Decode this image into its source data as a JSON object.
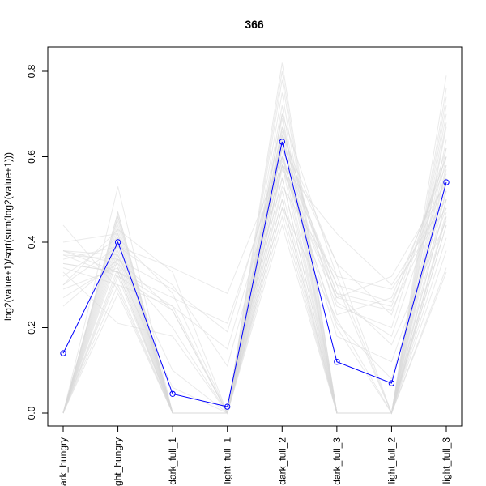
{
  "chart_data": {
    "type": "line",
    "title": "366",
    "xlabel": "",
    "ylabel": "log2(value+1)/sqrt(sum(log2(value+1)))",
    "categories": [
      "dark_hungry",
      "light_hungry",
      "dark_full_1",
      "light_full_1",
      "dark_full_2",
      "dark_full_3",
      "light_full_2",
      "light_full_3"
    ],
    "ylim": [
      0.0,
      0.8
    ],
    "yticks": [
      0.0,
      0.2,
      0.4,
      0.6,
      0.8
    ],
    "ytick_labels": [
      "0.0",
      "0.2",
      "0.4",
      "0.6",
      "0.8"
    ],
    "series": [
      {
        "color": "#0000ff",
        "values": [
          0.14,
          0.4,
          0.045,
          0.015,
          0.635,
          0.12,
          0.07,
          0.54
        ]
      }
    ],
    "background_series": [
      {
        "values": [
          0.0,
          0.47,
          0.0,
          0.0,
          0.82,
          0.0,
          0.0,
          0.79
        ]
      },
      {
        "values": [
          0.0,
          0.46,
          0.0,
          0.0,
          0.8,
          0.0,
          0.0,
          0.76
        ]
      },
      {
        "values": [
          0.0,
          0.47,
          0.0,
          0.0,
          0.78,
          0.0,
          0.0,
          0.74
        ]
      },
      {
        "values": [
          0.0,
          0.46,
          0.0,
          0.0,
          0.75,
          0.0,
          0.0,
          0.72
        ]
      },
      {
        "values": [
          0.0,
          0.45,
          0.0,
          0.0,
          0.72,
          0.0,
          0.0,
          0.7
        ]
      },
      {
        "values": [
          0.0,
          0.44,
          0.0,
          0.0,
          0.7,
          0.0,
          0.0,
          0.67
        ]
      },
      {
        "values": [
          0.0,
          0.43,
          0.0,
          0.0,
          0.67,
          0.0,
          0.0,
          0.64
        ]
      },
      {
        "values": [
          0.0,
          0.42,
          0.0,
          0.0,
          0.65,
          0.0,
          0.0,
          0.62
        ]
      },
      {
        "values": [
          0.0,
          0.41,
          0.0,
          0.0,
          0.62,
          0.0,
          0.0,
          0.6
        ]
      },
      {
        "values": [
          0.0,
          0.4,
          0.0,
          0.0,
          0.6,
          0.0,
          0.0,
          0.57
        ]
      },
      {
        "values": [
          0.0,
          0.39,
          0.0,
          0.0,
          0.58,
          0.0,
          0.0,
          0.55
        ]
      },
      {
        "values": [
          0.0,
          0.38,
          0.0,
          0.0,
          0.55,
          0.0,
          0.0,
          0.52
        ]
      },
      {
        "values": [
          0.0,
          0.37,
          0.0,
          0.0,
          0.52,
          0.0,
          0.0,
          0.5
        ]
      },
      {
        "values": [
          0.0,
          0.36,
          0.0,
          0.0,
          0.5,
          0.0,
          0.0,
          0.47
        ]
      },
      {
        "values": [
          0.0,
          0.34,
          0.0,
          0.0,
          0.48,
          0.0,
          0.0,
          0.44
        ]
      },
      {
        "values": [
          0.0,
          0.33,
          0.0,
          0.0,
          0.46,
          0.0,
          0.0,
          0.41
        ]
      },
      {
        "values": [
          0.0,
          0.32,
          0.0,
          0.0,
          0.44,
          0.0,
          0.0,
          0.38
        ]
      },
      {
        "values": [
          0.0,
          0.3,
          0.0,
          0.0,
          0.5,
          0.0,
          0.0,
          0.34
        ]
      },
      {
        "values": [
          0.0,
          0.28,
          0.0,
          0.0,
          0.55,
          0.0,
          0.0,
          0.33
        ]
      },
      {
        "values": [
          0.0,
          0.53,
          0.0,
          0.0,
          0.69,
          0.0,
          0.0,
          0.68
        ]
      },
      {
        "values": [
          0.44,
          0.29,
          0.0,
          0.0,
          0.7,
          0.32,
          0.0,
          0.58
        ]
      },
      {
        "values": [
          0.38,
          0.33,
          0.0,
          0.0,
          0.65,
          0.35,
          0.0,
          0.5
        ]
      },
      {
        "values": [
          0.37,
          0.36,
          0.24,
          0.0,
          0.62,
          0.28,
          0.25,
          0.6
        ]
      },
      {
        "values": [
          0.35,
          0.33,
          0.27,
          0.21,
          0.6,
          0.3,
          0.26,
          0.55
        ]
      },
      {
        "values": [
          0.34,
          0.3,
          0.25,
          0.0,
          0.57,
          0.27,
          0.24,
          0.52
        ]
      },
      {
        "values": [
          0.33,
          0.21,
          0.18,
          0.0,
          0.53,
          0.32,
          0.29,
          0.48
        ]
      },
      {
        "values": [
          0.38,
          0.35,
          0.0,
          0.0,
          0.58,
          0.25,
          0.2,
          0.62
        ]
      },
      {
        "values": [
          0.36,
          0.39,
          0.34,
          0.28,
          0.6,
          0.2,
          0.0,
          0.46
        ]
      },
      {
        "values": [
          0.3,
          0.43,
          0.33,
          0.0,
          0.58,
          0.42,
          0.3,
          0.5
        ]
      },
      {
        "values": [
          0.25,
          0.36,
          0.29,
          0.19,
          0.62,
          0.3,
          0.0,
          0.46
        ]
      },
      {
        "values": [
          0.27,
          0.35,
          0.2,
          0.0,
          0.67,
          0.23,
          0.27,
          0.58
        ]
      },
      {
        "values": [
          0.32,
          0.41,
          0.28,
          0.0,
          0.64,
          0.28,
          0.16,
          0.45
        ]
      },
      {
        "values": [
          0.35,
          0.33,
          0.25,
          0.15,
          0.59,
          0.27,
          0.32,
          0.54
        ]
      },
      {
        "values": [
          0.38,
          0.37,
          0.1,
          0.0,
          0.63,
          0.35,
          0.23,
          0.6
        ]
      },
      {
        "values": [
          0.4,
          0.42,
          0.0,
          0.0,
          0.48,
          0.22,
          0.0,
          0.44
        ]
      },
      {
        "values": [
          0.29,
          0.34,
          0.06,
          0.0,
          0.6,
          0.18,
          0.12,
          0.48
        ]
      },
      {
        "values": [
          0.37,
          0.32,
          0.24,
          0.0,
          0.66,
          0.26,
          0.18,
          0.56
        ]
      },
      {
        "values": [
          0.3,
          0.39,
          0.3,
          0.11,
          0.58,
          0.21,
          0.08,
          0.52
        ]
      }
    ],
    "grid": false,
    "legend": "none"
  }
}
